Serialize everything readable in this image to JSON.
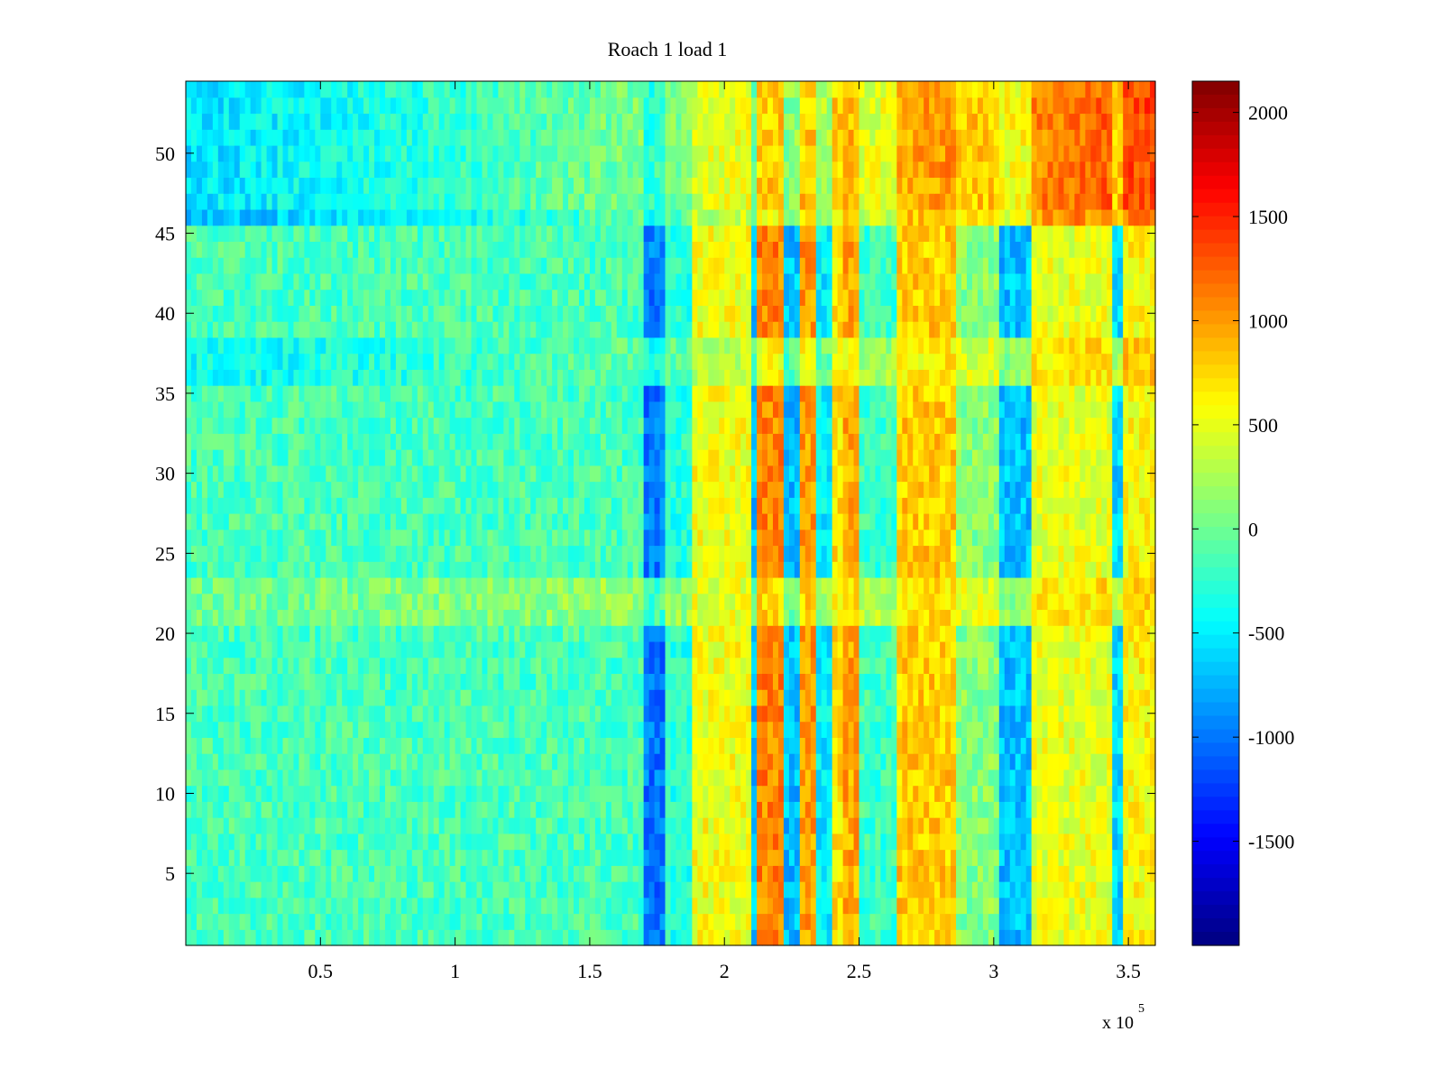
{
  "chart_data": {
    "type": "heatmap",
    "title": "Roach 1 load 1",
    "xlabel": "",
    "ylabel": "",
    "x_exponent_label": "x 10",
    "x_exponent_power": "5",
    "xlim": [
      0,
      360000
    ],
    "ylim": [
      0.5,
      54.5
    ],
    "n_rows": 54,
    "x_ticks": [
      50000,
      100000,
      150000,
      200000,
      250000,
      300000,
      350000
    ],
    "x_tick_labels": [
      "0.5",
      "1",
      "1.5",
      "2",
      "2.5",
      "3",
      "3.5"
    ],
    "y_ticks": [
      5,
      10,
      15,
      20,
      25,
      30,
      35,
      40,
      45,
      50
    ],
    "y_tick_labels": [
      "5",
      "10",
      "15",
      "20",
      "25",
      "30",
      "35",
      "40",
      "45",
      "50"
    ],
    "colormap": "jet",
    "clim": [
      -2000,
      2150
    ],
    "colorbar_ticks": [
      2000,
      1500,
      1000,
      500,
      0,
      -500,
      -1000,
      -1500
    ],
    "colorbar_tick_labels": [
      "2000",
      "1500",
      "1000",
      "500",
      "0",
      "-500",
      "-1000",
      "-1500"
    ],
    "grid": false,
    "column_profile": [
      {
        "x0": 0,
        "x1": 170000,
        "value": -150
      },
      {
        "x0": 170000,
        "x1": 178000,
        "value": -1000
      },
      {
        "x0": 178000,
        "x1": 188000,
        "value": -300
      },
      {
        "x0": 188000,
        "x1": 210000,
        "value": 550
      },
      {
        "x0": 210000,
        "x1": 213000,
        "value": -700
      },
      {
        "x0": 213000,
        "x1": 222000,
        "value": 1100
      },
      {
        "x0": 222000,
        "x1": 228000,
        "value": -700
      },
      {
        "x0": 228000,
        "x1": 235000,
        "value": 1000
      },
      {
        "x0": 235000,
        "x1": 240000,
        "value": -500
      },
      {
        "x0": 240000,
        "x1": 245000,
        "value": 700
      },
      {
        "x0": 245000,
        "x1": 251000,
        "value": 950
      },
      {
        "x0": 251000,
        "x1": 265000,
        "value": -200
      },
      {
        "x0": 265000,
        "x1": 287000,
        "value": 800
      },
      {
        "x0": 287000,
        "x1": 303000,
        "value": 100
      },
      {
        "x0": 303000,
        "x1": 315000,
        "value": -700
      },
      {
        "x0": 315000,
        "x1": 345000,
        "value": 500
      },
      {
        "x0": 345000,
        "x1": 349000,
        "value": -600
      },
      {
        "x0": 349000,
        "x1": 360000,
        "value": 600
      }
    ],
    "row_profile": [
      {
        "rows": [
          47,
          54
        ],
        "left": -800,
        "right": 1900
      },
      {
        "rows": [
          46,
          46
        ],
        "left": -1100,
        "right": 1700
      },
      {
        "rows": [
          36,
          38
        ],
        "left": -600,
        "right": 1000
      },
      {
        "rows": [
          21,
          23
        ],
        "left": 100,
        "right": 900
      }
    ]
  }
}
